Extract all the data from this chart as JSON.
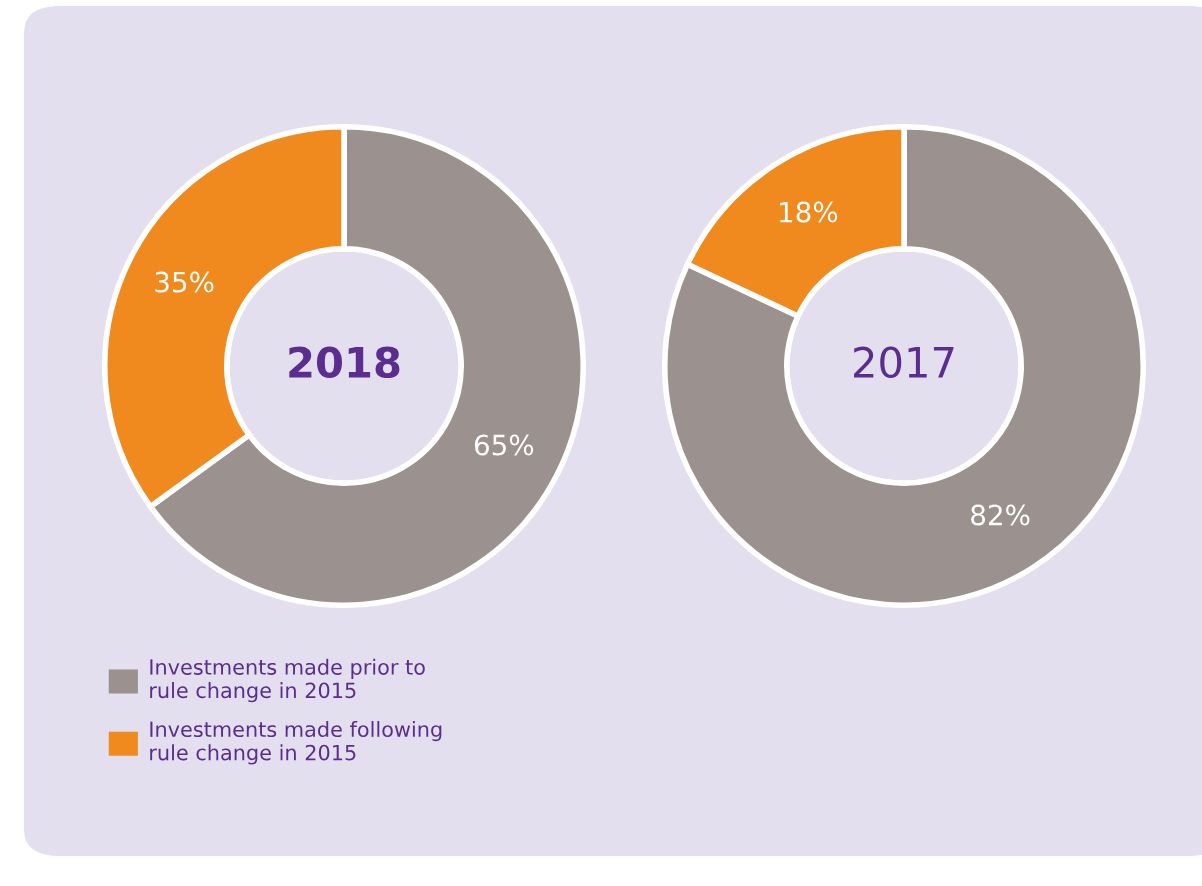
{
  "chart_data": [
    {
      "type": "donut",
      "title": "2018",
      "categories": [
        "Investments made prior to\nrule change in 2015",
        "Investments made following\nrule change in 2015"
      ],
      "values": [
        65,
        35
      ],
      "value_labels": [
        "65%",
        "35%"
      ],
      "colors": [
        "#9b928f",
        "#f0891e"
      ],
      "legend": "bottom left"
    },
    {
      "type": "donut",
      "title": "2017",
      "values": [
        82,
        18
      ],
      "value_labels": [
        "82%",
        "18%"
      ],
      "colors": [
        "#9b928f",
        "#f0891e"
      ]
    }
  ]
}
